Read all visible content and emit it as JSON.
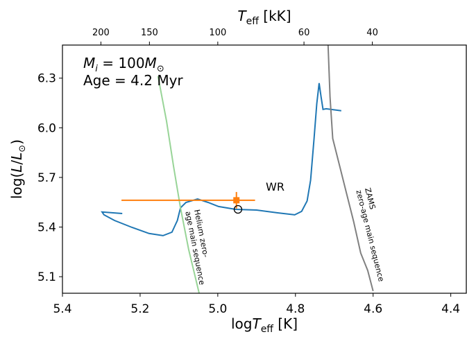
{
  "chart_data": {
    "type": "line",
    "mass_label": [
      "M",
      "i",
      " = 100",
      "M",
      "⊙"
    ],
    "age_label": "Age = 4.2 Myr",
    "x_label": [
      "log",
      "T",
      "eff",
      " [K]"
    ],
    "y_label": [
      "log(",
      "L",
      "/",
      "L",
      "⊙",
      ")"
    ],
    "x2_label": [
      "T",
      "eff",
      " [kK]"
    ],
    "xlim": [
      5.4,
      4.36
    ],
    "ylim": [
      5.0,
      6.5
    ],
    "xticks": [
      5.4,
      5.2,
      {
        "value": 5.0,
        "label": "5.0"
      },
      4.8,
      4.6,
      4.4
    ],
    "yticks": [
      5.1,
      5.4,
      5.7,
      {
        "value": 6.0,
        "label": "6.0"
      },
      6.3
    ],
    "x2ticks": [
      {
        "value": 5.301,
        "label": "200"
      },
      {
        "value": 5.176,
        "label": "150"
      },
      {
        "value": 5.0,
        "label": "100"
      },
      {
        "value": 4.778,
        "label": "60"
      },
      {
        "value": 4.602,
        "label": "40"
      }
    ],
    "series": [
      {
        "color": "#1f77b4",
        "x": [
          5.246,
          5.298,
          5.293,
          5.266,
          5.221,
          5.177,
          5.141,
          5.118,
          5.104,
          5.096,
          5.082,
          5.052,
          5.025,
          4.998,
          4.954,
          4.9,
          4.846,
          4.802,
          4.784,
          4.77,
          4.761,
          4.752,
          4.745,
          4.739,
          4.734,
          4.729,
          4.721,
          4.682
        ],
        "values": [
          5.482,
          5.491,
          5.474,
          5.44,
          5.398,
          5.361,
          5.348,
          5.369,
          5.44,
          5.516,
          5.549,
          5.57,
          5.549,
          5.524,
          5.507,
          5.503,
          5.486,
          5.474,
          5.495,
          5.558,
          5.683,
          5.935,
          6.145,
          6.27,
          6.187,
          6.111,
          6.115,
          6.103
        ]
      },
      {
        "color": "#98d497",
        "x": [
          5.154,
          5.132,
          5.114,
          5.096,
          5.075,
          5.048
        ],
        "values": [
          6.312,
          6.04,
          5.767,
          5.516,
          5.264,
          5.0
        ]
      },
      {
        "color": "#808080",
        "x": [
          4.716,
          4.711,
          4.704,
          4.686,
          4.668,
          4.65,
          4.632,
          4.614,
          4.6
        ],
        "values": [
          6.5,
          6.187,
          5.935,
          5.767,
          5.6,
          5.432,
          5.243,
          5.138,
          5.013
        ]
      }
    ],
    "wr_point": {
      "label": "WR",
      "color": "#ff7f0e",
      "x": 4.952,
      "y": 5.562,
      "xerr": [
        0.296,
        0.048
      ],
      "yerr": 0.05
    },
    "model_point": {
      "x": 4.948,
      "y": 5.507
    },
    "helium_label": [
      "Helium zero-",
      "age main sequence"
    ],
    "zams_label": [
      "ZAMS",
      "zero-age main sequence"
    ]
  }
}
